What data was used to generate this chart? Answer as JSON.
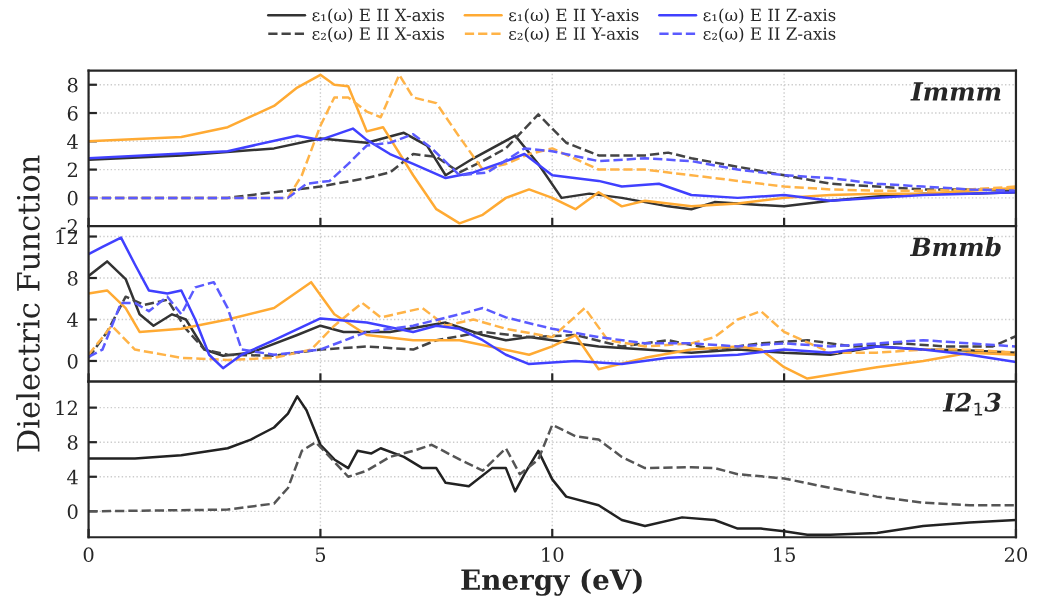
{
  "chart_data": [
    {
      "type": "line",
      "xlim": [
        0,
        20
      ],
      "xticks": [
        0,
        5,
        10,
        15,
        20
      ],
      "ylim": [
        -2,
        9
      ],
      "yticks": [
        -2,
        0,
        2,
        4,
        6,
        8
      ],
      "grid": true,
      "tick_labels": "y",
      "legend": "top",
      "annotations": [
        "Immm"
      ],
      "series": [
        {
          "name": "ε₁(ω) E II X-axis",
          "color": "#333333",
          "line_style": "solid",
          "x": [
            0,
            2,
            4,
            5,
            6,
            6.8,
            7.3,
            7.7,
            8.3,
            9.2,
            9.7,
            10.2,
            10.8,
            11.5,
            12.5,
            13,
            13.5,
            14,
            15,
            16,
            17,
            18,
            19,
            20
          ],
          "values": [
            2.7,
            3.0,
            3.5,
            4.2,
            3.9,
            4.6,
            3.7,
            1.6,
            2.8,
            4.4,
            2.4,
            0,
            0.3,
            0,
            -0.6,
            -0.8,
            -0.3,
            -0.4,
            -0.6,
            -0.2,
            0.1,
            0.3,
            0.3,
            0.4
          ]
        },
        {
          "name": "ε₂(ω) E II X-axis",
          "color": "#444444",
          "line_style": "dashed",
          "x": [
            0,
            3,
            4,
            5,
            6,
            6.5,
            7,
            7.5,
            8,
            8.5,
            9,
            9.7,
            10.3,
            11,
            12,
            12.5,
            13,
            14,
            15,
            16,
            17,
            18,
            19,
            20
          ],
          "values": [
            0,
            0,
            0.4,
            0.8,
            1.4,
            1.8,
            3.1,
            2.9,
            1.8,
            2.6,
            3.5,
            5.9,
            3.9,
            3.0,
            3.0,
            3.2,
            2.8,
            2.2,
            1.6,
            1.0,
            0.8,
            0.6,
            0.6,
            0.5
          ]
        },
        {
          "name": "ε₁(ω) E II Y-axis",
          "color": "#ffaa33",
          "line_style": "solid",
          "x": [
            0,
            2,
            3,
            4,
            4.5,
            5,
            5.3,
            5.6,
            6,
            6.35,
            7,
            7.5,
            8,
            8.5,
            9,
            9.5,
            10,
            10.5,
            11,
            11.5,
            12,
            13,
            14,
            15,
            16,
            17,
            18,
            19,
            20
          ],
          "values": [
            4.0,
            4.3,
            5.0,
            6.5,
            7.8,
            8.7,
            8.0,
            7.9,
            4.7,
            5.0,
            1.6,
            -0.8,
            -1.8,
            -1.2,
            0,
            0.6,
            0,
            -0.8,
            0.4,
            -0.6,
            -0.2,
            -0.6,
            -0.4,
            0,
            0.2,
            0.3,
            0.3,
            0.5,
            0.7
          ]
        },
        {
          "name": "ε₂(ω) E II Y-axis",
          "color": "#ffb347",
          "line_style": "dashed",
          "x": [
            0,
            4.3,
            4.6,
            5,
            5.3,
            5.6,
            6,
            6.3,
            6.7,
            7,
            7.5,
            8,
            8.5,
            9,
            9.5,
            10,
            11,
            12,
            13,
            14,
            15,
            16,
            17,
            18,
            19,
            20
          ],
          "values": [
            0,
            0,
            1.6,
            5.1,
            7.1,
            7.1,
            6.1,
            5.7,
            8.7,
            7.1,
            6.7,
            4.3,
            2.0,
            2.4,
            3.1,
            3.5,
            2.0,
            2.0,
            1.6,
            1.2,
            0.8,
            0.6,
            0.5,
            0.5,
            0.6,
            0.8
          ]
        },
        {
          "name": "ε₁(ω) E II Z-axis",
          "color": "#4040ff",
          "line_style": "solid",
          "x": [
            0,
            3,
            4.5,
            5,
            5.7,
            6,
            6.5,
            7,
            7.7,
            8.3,
            9,
            9.4,
            10,
            11,
            11.5,
            12.3,
            13,
            14,
            15,
            16,
            17,
            18,
            19,
            20
          ],
          "values": [
            2.8,
            3.3,
            4.4,
            4.1,
            4.9,
            4.1,
            3.1,
            2.4,
            1.4,
            1.8,
            2.6,
            3.1,
            1.6,
            1.2,
            0.8,
            1.0,
            0.2,
            0,
            0.2,
            -0.2,
            0,
            0.2,
            0.3,
            0.4
          ]
        },
        {
          "name": "ε₂(ω) E II Z-axis",
          "color": "#5a5aff",
          "line_style": "dashed",
          "x": [
            0,
            4.3,
            4.7,
            5.2,
            5.6,
            6,
            6.5,
            7,
            7.4,
            8,
            8.6,
            9.4,
            10,
            11,
            12,
            13,
            14,
            15,
            16,
            17,
            18,
            19,
            20
          ],
          "values": [
            0,
            0,
            1.0,
            1.2,
            2.4,
            3.7,
            3.9,
            4.5,
            3.5,
            1.6,
            1.8,
            3.5,
            3.3,
            2.6,
            2.8,
            2.6,
            2.0,
            1.6,
            1.4,
            1.0,
            0.8,
            0.6,
            0.5
          ]
        }
      ]
    },
    {
      "type": "line",
      "xlim": [
        0,
        20
      ],
      "xticks": [
        0,
        5,
        10,
        15,
        20
      ],
      "ylim": [
        -2,
        13
      ],
      "yticks": [
        0,
        4,
        8,
        12
      ],
      "grid": true,
      "tick_labels": "y",
      "ylabel": "Dielectric Function",
      "annotations": [
        "Bmmb"
      ],
      "series": [
        {
          "color": "#333333",
          "line_style": "solid",
          "x": [
            0,
            0.4,
            0.8,
            1.1,
            1.4,
            1.8,
            2.1,
            2.5,
            2.9,
            3.5,
            4.5,
            5,
            5.5,
            6.5,
            7.7,
            8.5,
            9,
            9.5,
            10,
            11,
            12,
            13,
            14,
            15,
            16,
            17,
            18,
            19,
            20
          ],
          "values": [
            8.2,
            9.6,
            7.9,
            4.5,
            3.4,
            4.5,
            4.0,
            1.1,
            0.5,
            0.8,
            2.5,
            3.4,
            2.8,
            2.8,
            3.7,
            2.5,
            2.0,
            2.3,
            2.0,
            1.4,
            1.1,
            0.8,
            1.1,
            0.8,
            0.6,
            1.4,
            1.1,
            1.0,
            0.8
          ]
        },
        {
          "color": "#444444",
          "line_style": "dashed",
          "x": [
            0,
            0.4,
            0.8,
            1.2,
            1.7,
            2.1,
            2.5,
            3,
            4,
            5,
            6,
            7,
            7.5,
            8.5,
            9.5,
            10.5,
            11.5,
            12.5,
            13.5,
            14.5,
            15.5,
            16.5,
            17.5,
            18.5,
            19.5,
            20
          ],
          "values": [
            0.3,
            2.8,
            6.2,
            5.4,
            5.9,
            3.1,
            1.1,
            0.6,
            0.5,
            1.1,
            1.4,
            1.1,
            2.0,
            2.8,
            2.3,
            2.5,
            1.4,
            2.0,
            1.1,
            1.7,
            2.0,
            1.4,
            1.7,
            1.4,
            1.4,
            2.4
          ]
        },
        {
          "color": "#ffaa33",
          "line_style": "solid",
          "x": [
            0,
            0.4,
            0.8,
            1.1,
            2,
            3,
            4,
            4.8,
            5.3,
            6,
            7,
            8,
            9.5,
            10,
            10.5,
            11,
            12,
            13,
            14,
            14.5,
            15,
            15.5,
            17,
            18,
            19,
            20
          ],
          "values": [
            6.5,
            6.8,
            5.1,
            2.8,
            3.1,
            4.0,
            5.1,
            7.6,
            4.5,
            2.5,
            2.0,
            2.0,
            0.6,
            1.4,
            2.5,
            -0.8,
            0.3,
            1.1,
            1.4,
            1.1,
            -0.6,
            -1.7,
            -0.6,
            0,
            0.8,
            0.6
          ]
        },
        {
          "color": "#ffb347",
          "line_style": "dashed",
          "x": [
            0,
            0.5,
            1,
            2,
            3,
            4,
            4.8,
            5.3,
            5.9,
            6.3,
            7.2,
            7.7,
            8.3,
            9,
            10,
            10.7,
            11.2,
            12,
            13,
            13.5,
            14,
            14.5,
            15,
            16,
            17,
            18,
            19,
            20
          ],
          "values": [
            0.6,
            3.4,
            1.1,
            0.3,
            0.1,
            0.3,
            1.1,
            3.4,
            5.6,
            4.2,
            5.1,
            3.4,
            4.0,
            3.1,
            2.3,
            5.1,
            2.0,
            1.4,
            1.7,
            2.3,
            4.0,
            4.8,
            2.8,
            0.8,
            0.8,
            1.1,
            1.1,
            0.8
          ]
        },
        {
          "color": "#4040ff",
          "line_style": "solid",
          "x": [
            0,
            0.3,
            0.7,
            1,
            1.3,
            1.7,
            2,
            2.3,
            2.6,
            2.9,
            3.3,
            4,
            5,
            6,
            7,
            7.5,
            8,
            8.5,
            9,
            9.5,
            10.5,
            11.5,
            12.5,
            14,
            15,
            16,
            17,
            18,
            19,
            20
          ],
          "values": [
            10.3,
            11.0,
            11.9,
            9.3,
            6.8,
            6.5,
            6.8,
            4.0,
            0.6,
            -0.7,
            0.6,
            2.0,
            4.1,
            3.7,
            2.8,
            3.4,
            3.1,
            2.0,
            0.6,
            -0.3,
            0,
            -0.3,
            0.3,
            0.6,
            1.1,
            0.8,
            1.4,
            1.1,
            0.6,
            -0.1
          ]
        },
        {
          "color": "#5a5aff",
          "line_style": "dashed",
          "x": [
            0,
            0.3,
            0.7,
            1,
            1.3,
            1.7,
            2,
            2.3,
            2.7,
            3,
            3.3,
            4,
            5,
            6,
            7,
            8,
            8.5,
            9,
            10,
            11,
            12,
            13,
            14,
            15,
            16,
            17,
            18,
            19,
            20
          ],
          "values": [
            0.4,
            1.1,
            5.6,
            5.6,
            4.8,
            6.2,
            4.5,
            7.1,
            7.6,
            5.1,
            1.1,
            0.6,
            1.1,
            2.8,
            3.4,
            4.5,
            5.1,
            4.2,
            3.1,
            2.3,
            1.7,
            1.7,
            1.4,
            1.7,
            1.4,
            1.7,
            2.0,
            1.7,
            1.4
          ]
        }
      ]
    },
    {
      "type": "line",
      "xlim": [
        0,
        20
      ],
      "xticks": [
        0,
        5,
        10,
        15,
        20
      ],
      "ylim": [
        -3,
        15
      ],
      "yticks": [
        0,
        4,
        8,
        12
      ],
      "grid": true,
      "xlabel": "Energy (eV)",
      "annotations": [
        "I2$_{1}$3"
      ],
      "series": [
        {
          "color": "#222222",
          "line_style": "solid",
          "x": [
            0,
            1,
            2,
            3,
            3.5,
            4,
            4.3,
            4.5,
            4.7,
            5,
            5.3,
            5.6,
            5.8,
            6.1,
            6.3,
            6.8,
            7.2,
            7.5,
            7.7,
            8.2,
            8.7,
            9,
            9.2,
            9.4,
            9.7,
            10,
            10.3,
            11,
            11.5,
            12,
            12.8,
            13.5,
            14,
            14.5,
            15,
            15.5,
            16,
            17,
            18,
            19,
            20
          ],
          "values": [
            6.1,
            6.1,
            6.5,
            7.3,
            8.3,
            9.7,
            11.3,
            13.3,
            11.7,
            7.7,
            6.0,
            5.0,
            7.0,
            6.7,
            7.3,
            6.3,
            5.0,
            5.0,
            3.3,
            2.9,
            5.0,
            5.0,
            2.3,
            4.3,
            7.0,
            3.7,
            1.7,
            0.7,
            -1.0,
            -1.7,
            -0.7,
            -1.0,
            -2.0,
            -2.0,
            -2.3,
            -2.7,
            -2.7,
            -2.5,
            -1.7,
            -1.3,
            -1.0
          ]
        },
        {
          "color": "#555555",
          "line_style": "dashed",
          "x": [
            0,
            3,
            4,
            4.3,
            4.6,
            4.9,
            5.2,
            5.6,
            6,
            6.5,
            7,
            7.4,
            8,
            8.5,
            9,
            9.3,
            9.7,
            10,
            10.5,
            11,
            11.5,
            12,
            13,
            13.5,
            14,
            15,
            16,
            17,
            18,
            19,
            20
          ],
          "values": [
            0,
            0.2,
            0.9,
            2.7,
            7.0,
            8.0,
            6.3,
            4.0,
            4.7,
            6.3,
            7.0,
            7.7,
            6.0,
            4.7,
            7.3,
            4.3,
            6.0,
            10.0,
            8.7,
            8.3,
            6.3,
            5.0,
            5.1,
            5.0,
            4.3,
            3.8,
            2.7,
            1.7,
            1.0,
            0.7,
            0.7
          ]
        }
      ]
    }
  ]
}
